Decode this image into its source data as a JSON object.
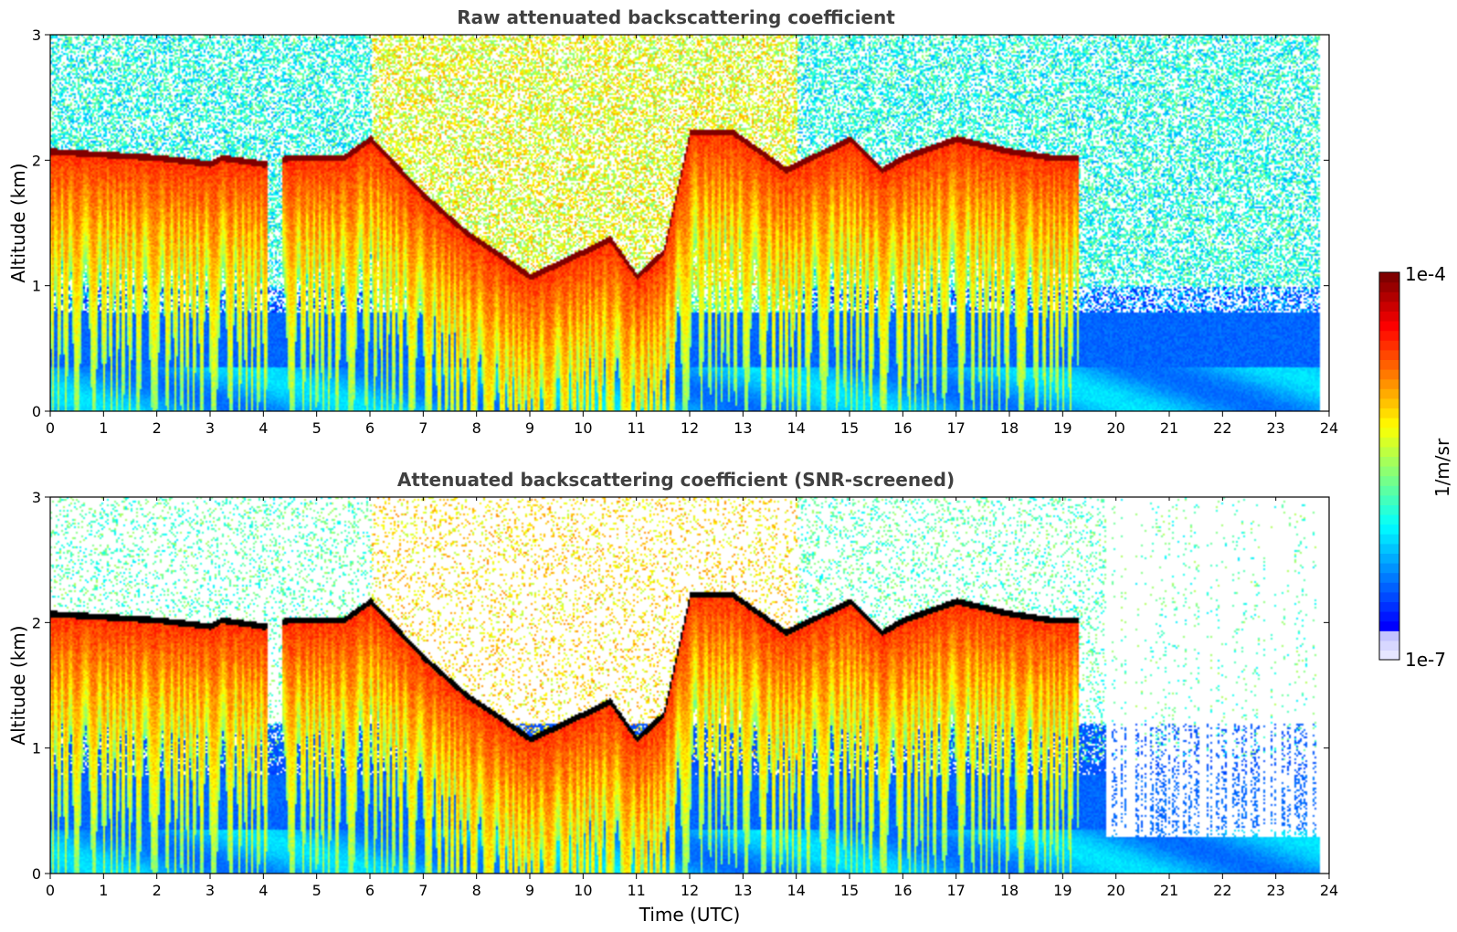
{
  "figure": {
    "colorbar": {
      "label": "1/m/sr",
      "max_label": "1e-4",
      "min_label": "1e-7",
      "colormap": "jet",
      "scale": "log",
      "range": [
        1e-07,
        0.0001
      ]
    },
    "xlabel": "Time (UTC)"
  },
  "chart_data": [
    {
      "type": "heatmap",
      "title": "Raw attenuated backscattering coefficient",
      "xlabel": "",
      "ylabel": "Altitude (km)",
      "xlim": [
        0,
        24
      ],
      "ylim": [
        0,
        3
      ],
      "xticks": [
        "0",
        "1",
        "2",
        "3",
        "4",
        "5",
        "6",
        "7",
        "8",
        "9",
        "10",
        "11",
        "12",
        "13",
        "14",
        "15",
        "16",
        "17",
        "18",
        "19",
        "20",
        "21",
        "22",
        "23",
        "24"
      ],
      "yticks": [
        "0",
        "1",
        "2",
        "3"
      ],
      "grid": false,
      "data_end_time": 23.8,
      "cloud_top_layer_km": [
        {
          "t": 0,
          "h": 2.1
        },
        {
          "t": 2,
          "h": 2.05
        },
        {
          "t": 3,
          "h": 2.0
        },
        {
          "t": 3.2,
          "h": 2.05
        },
        {
          "t": 4,
          "h": 2.0
        },
        {
          "t": 4.5,
          "h": 2.05
        },
        {
          "t": 5.5,
          "h": 2.05
        },
        {
          "t": 6,
          "h": 2.2
        },
        {
          "t": 7,
          "h": 1.75
        },
        {
          "t": 7.8,
          "h": 1.45
        },
        {
          "t": 8.5,
          "h": 1.25
        },
        {
          "t": 9,
          "h": 1.1
        },
        {
          "t": 10,
          "h": 1.3
        },
        {
          "t": 10.5,
          "h": 1.4
        },
        {
          "t": 11,
          "h": 1.1
        },
        {
          "t": 11.5,
          "h": 1.3
        },
        {
          "t": 12,
          "h": 2.25
        },
        {
          "t": 12.8,
          "h": 2.25
        },
        {
          "t": 13.8,
          "h": 1.95
        },
        {
          "t": 15,
          "h": 2.2
        },
        {
          "t": 15.6,
          "h": 1.95
        },
        {
          "t": 16,
          "h": 2.05
        },
        {
          "t": 17,
          "h": 2.2
        },
        {
          "t": 18,
          "h": 2.1
        },
        {
          "t": 18.8,
          "h": 2.05
        },
        {
          "t": 19.3,
          "h": 2.05
        }
      ],
      "dataset_note": ""
    },
    {
      "type": "heatmap",
      "title": "Attenuated backscattering coefficient (SNR-screened)",
      "xlabel": "Time (UTC)",
      "ylabel": "Altitude (km)",
      "xlim": [
        0,
        24
      ],
      "ylim": [
        0,
        3
      ],
      "xticks": [
        "0",
        "1",
        "2",
        "3",
        "4",
        "5",
        "6",
        "7",
        "8",
        "9",
        "10",
        "11",
        "12",
        "13",
        "14",
        "15",
        "16",
        "17",
        "18",
        "19",
        "20",
        "21",
        "22",
        "23",
        "24"
      ],
      "yticks": [
        "0",
        "1",
        "2",
        "3"
      ],
      "grid": false,
      "data_end_time": 23.8,
      "saturated_color": "#000000",
      "screened_values": "masked white"
    }
  ]
}
